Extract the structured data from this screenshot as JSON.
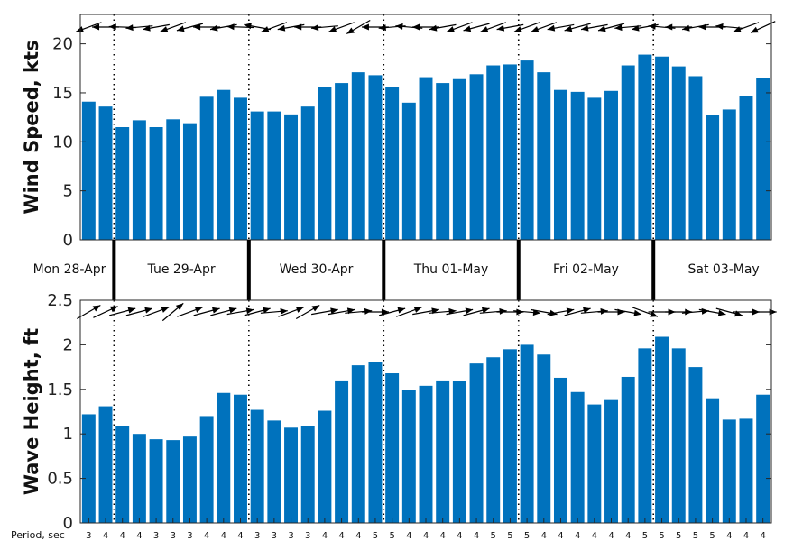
{
  "chart_data": [
    {
      "type": "bar",
      "ylabel": "Wind Speed, kts",
      "ylim": [
        0,
        23
      ],
      "yticks": [
        0,
        5,
        10,
        15,
        20
      ],
      "bar_color": "#0072BD",
      "values": [
        14.1,
        13.6,
        11.5,
        12.2,
        11.5,
        12.3,
        11.9,
        14.6,
        15.3,
        14.5,
        13.1,
        13.1,
        12.8,
        13.6,
        15.6,
        16.0,
        17.1,
        16.8,
        15.6,
        14.0,
        16.6,
        16.0,
        16.4,
        16.9,
        17.8,
        17.9,
        18.3,
        17.1,
        15.3,
        15.1,
        14.5,
        15.2,
        17.8,
        18.9,
        18.7,
        17.7,
        16.7,
        12.7,
        13.3,
        14.7,
        16.5
      ],
      "direction_arrows": [
        200,
        180,
        178,
        185,
        190,
        200,
        195,
        180,
        190,
        178,
        170,
        200,
        190,
        180,
        185,
        200,
        210,
        180,
        185,
        175,
        180,
        190,
        200,
        195,
        200,
        190,
        200,
        200,
        190,
        195,
        190,
        195,
        185,
        190,
        175,
        180,
        190,
        180,
        175,
        200,
        205
      ],
      "day_labels": [
        "Mon 28-Apr",
        "Tue 29-Apr",
        "Wed 30-Apr",
        "Thu 01-May",
        "Fri 02-May",
        "Sat 03-May"
      ],
      "day_boundaries": [
        1.5,
        9.5,
        17.5,
        25.5,
        33.5
      ],
      "grid": false
    },
    {
      "type": "bar",
      "ylabel": "Wave Height, ft",
      "ylim": [
        0,
        2.5
      ],
      "yticks": [
        0,
        0.5,
        1,
        1.5,
        2,
        2.5
      ],
      "bar_color": "#0072BD",
      "values": [
        1.22,
        1.31,
        1.09,
        1.0,
        0.94,
        0.93,
        0.97,
        1.2,
        1.46,
        1.44,
        1.27,
        1.15,
        1.07,
        1.09,
        1.26,
        1.6,
        1.77,
        1.81,
        1.68,
        1.49,
        1.54,
        1.6,
        1.59,
        1.79,
        1.86,
        1.95,
        2.0,
        1.89,
        1.63,
        1.47,
        1.33,
        1.38,
        1.64,
        1.96,
        2.09,
        1.96,
        1.75,
        1.4,
        1.16,
        1.17,
        1.44
      ],
      "direction_arrows": [
        30,
        25,
        15,
        15,
        20,
        40,
        20,
        15,
        15,
        10,
        15,
        5,
        20,
        30,
        10,
        10,
        5,
        0,
        15,
        20,
        10,
        5,
        10,
        15,
        5,
        0,
        355,
        350,
        10,
        15,
        5,
        0,
        350,
        340,
        0,
        0,
        5,
        350,
        345,
        0,
        0
      ],
      "period_label": "Period, sec",
      "periods": [
        "3",
        "4",
        "4",
        "4",
        "3",
        "3",
        "3",
        "4",
        "4",
        "4",
        "3",
        "3",
        "3",
        "3",
        "4",
        "4",
        "4",
        "5",
        "5",
        "4",
        "4",
        "4",
        "4",
        "4",
        "5",
        "5",
        "5",
        "4",
        "4",
        "4",
        "4",
        "4",
        "4",
        "5",
        "5",
        "5",
        "5",
        "5",
        "4",
        "4",
        "4"
      ],
      "day_boundaries": [
        1.5,
        9.5,
        17.5,
        25.5,
        33.5
      ],
      "grid": false
    }
  ]
}
